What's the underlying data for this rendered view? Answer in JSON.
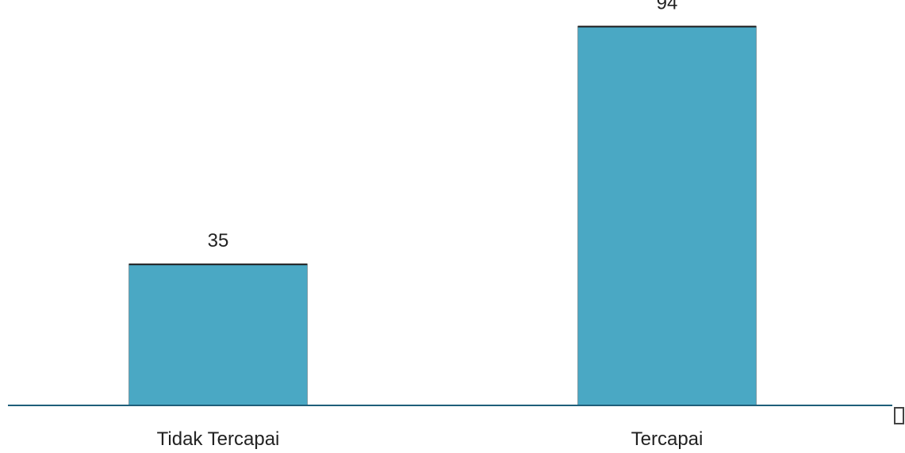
{
  "chart_data": {
    "type": "bar",
    "categories": [
      "Tidak Tercapai",
      "Tercapai"
    ],
    "values": [
      35,
      94
    ],
    "ylim": [
      0,
      100
    ],
    "title": "",
    "xlabel": "",
    "ylabel": "",
    "grid": false,
    "legend": "none",
    "bar_color": "#4aa8c4",
    "axis_color": "#1f5f7a"
  }
}
